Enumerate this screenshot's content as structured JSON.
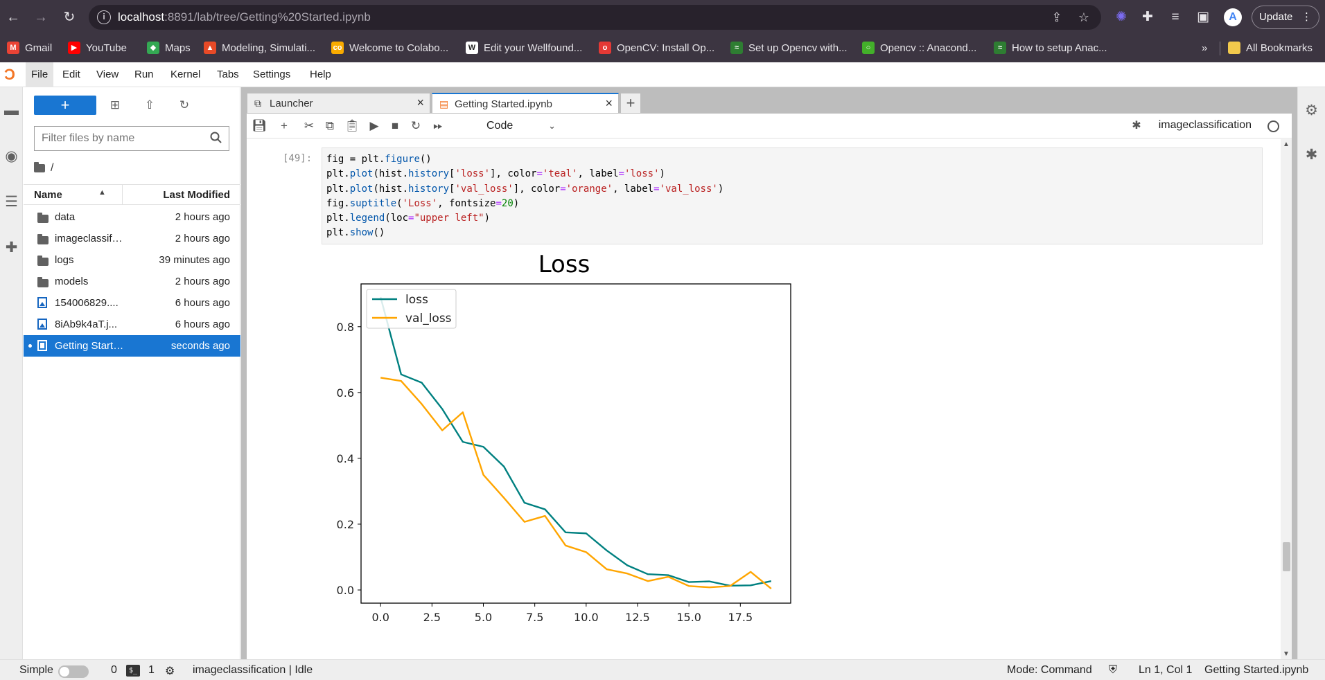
{
  "browser": {
    "url_host": "localhost",
    "url_rest": ":8891/lab/tree/Getting%20Started.ipynb",
    "update_label": "Update",
    "bookmarks": [
      {
        "label": "Gmail",
        "color": "#ea4335",
        "glyph": "M"
      },
      {
        "label": "YouTube",
        "color": "#ff0000",
        "glyph": "▶"
      },
      {
        "label": "Maps",
        "color": "#34a853",
        "glyph": "◆"
      },
      {
        "label": "Modeling, Simulati...",
        "color": "#e84a27",
        "glyph": "▲"
      },
      {
        "label": "Welcome to Colabo...",
        "color": "#f9ab00",
        "glyph": "co"
      },
      {
        "label": "Edit your Wellfound...",
        "color": "#ffffff",
        "glyph": "W"
      },
      {
        "label": "OpenCV: Install Op...",
        "color": "#e53935",
        "glyph": "o"
      },
      {
        "label": "Set up Opencv with...",
        "color": "#2e7d32",
        "glyph": "≈"
      },
      {
        "label": "Opencv :: Anacond...",
        "color": "#43b02a",
        "glyph": "○"
      },
      {
        "label": "How to setup Anac...",
        "color": "#2e7d32",
        "glyph": "≈"
      }
    ],
    "all_bookmarks": "All Bookmarks",
    "more_bookmarks": "»"
  },
  "menu": [
    "File",
    "Edit",
    "View",
    "Run",
    "Kernel",
    "Tabs",
    "Settings",
    "Help"
  ],
  "filebrowser": {
    "filter_placeholder": "Filter files by name",
    "breadcrumb": "/",
    "col_name": "Name",
    "col_modified": "Last Modified",
    "files": [
      {
        "name": "data",
        "modified": "2 hours ago",
        "type": "folder"
      },
      {
        "name": "imageclassification",
        "modified": "2 hours ago",
        "type": "folder"
      },
      {
        "name": "logs",
        "modified": "39 minutes ago",
        "type": "folder"
      },
      {
        "name": "models",
        "modified": "2 hours ago",
        "type": "folder"
      },
      {
        "name": "154006829....",
        "modified": "6 hours ago",
        "type": "image"
      },
      {
        "name": "8iAb9k4aT.j...",
        "modified": "6 hours ago",
        "type": "image"
      },
      {
        "name": "Getting Started.ipynb",
        "modified": "seconds ago",
        "type": "notebook"
      }
    ]
  },
  "tabs": [
    {
      "label": "Launcher",
      "icon": "launcher-icon"
    },
    {
      "label": "Getting Started.ipynb",
      "icon": "notebook-icon"
    }
  ],
  "toolbar": {
    "cell_type": "Code",
    "kernel": "imageclassification"
  },
  "cell": {
    "prompt": "[49]:"
  },
  "chart_data": {
    "type": "line",
    "title": "Loss",
    "xlabel": "",
    "ylabel": "",
    "xlim": [
      -0.95,
      19.95
    ],
    "ylim": [
      -0.04,
      0.93
    ],
    "xticks": [
      "0.0",
      "2.5",
      "5.0",
      "7.5",
      "10.0",
      "12.5",
      "15.0",
      "17.5"
    ],
    "yticks": [
      "0.0",
      "0.2",
      "0.4",
      "0.6",
      "0.8"
    ],
    "legend_loc": "upper left",
    "x": [
      0,
      1,
      2,
      3,
      4,
      5,
      6,
      7,
      8,
      9,
      10,
      11,
      12,
      13,
      14,
      15,
      16,
      17,
      18,
      19
    ],
    "series": [
      {
        "name": "loss",
        "color": "#008080",
        "values": [
          0.89,
          0.655,
          0.63,
          0.55,
          0.45,
          0.435,
          0.375,
          0.265,
          0.245,
          0.175,
          0.172,
          0.12,
          0.075,
          0.048,
          0.045,
          0.024,
          0.026,
          0.013,
          0.014,
          0.027
        ]
      },
      {
        "name": "val_loss",
        "color": "#ffa500",
        "values": [
          0.645,
          0.635,
          0.565,
          0.485,
          0.54,
          0.35,
          0.28,
          0.207,
          0.225,
          0.135,
          0.115,
          0.063,
          0.05,
          0.027,
          0.04,
          0.012,
          0.008,
          0.012,
          0.055,
          0.004
        ]
      }
    ]
  },
  "statusbar": {
    "mode_label": "Simple",
    "terminals": "0",
    "kernels": "1",
    "kernel_status": "imageclassification | Idle",
    "mode": "Mode: Command",
    "position": "Ln 1, Col 1",
    "filename": "Getting Started.ipynb"
  }
}
